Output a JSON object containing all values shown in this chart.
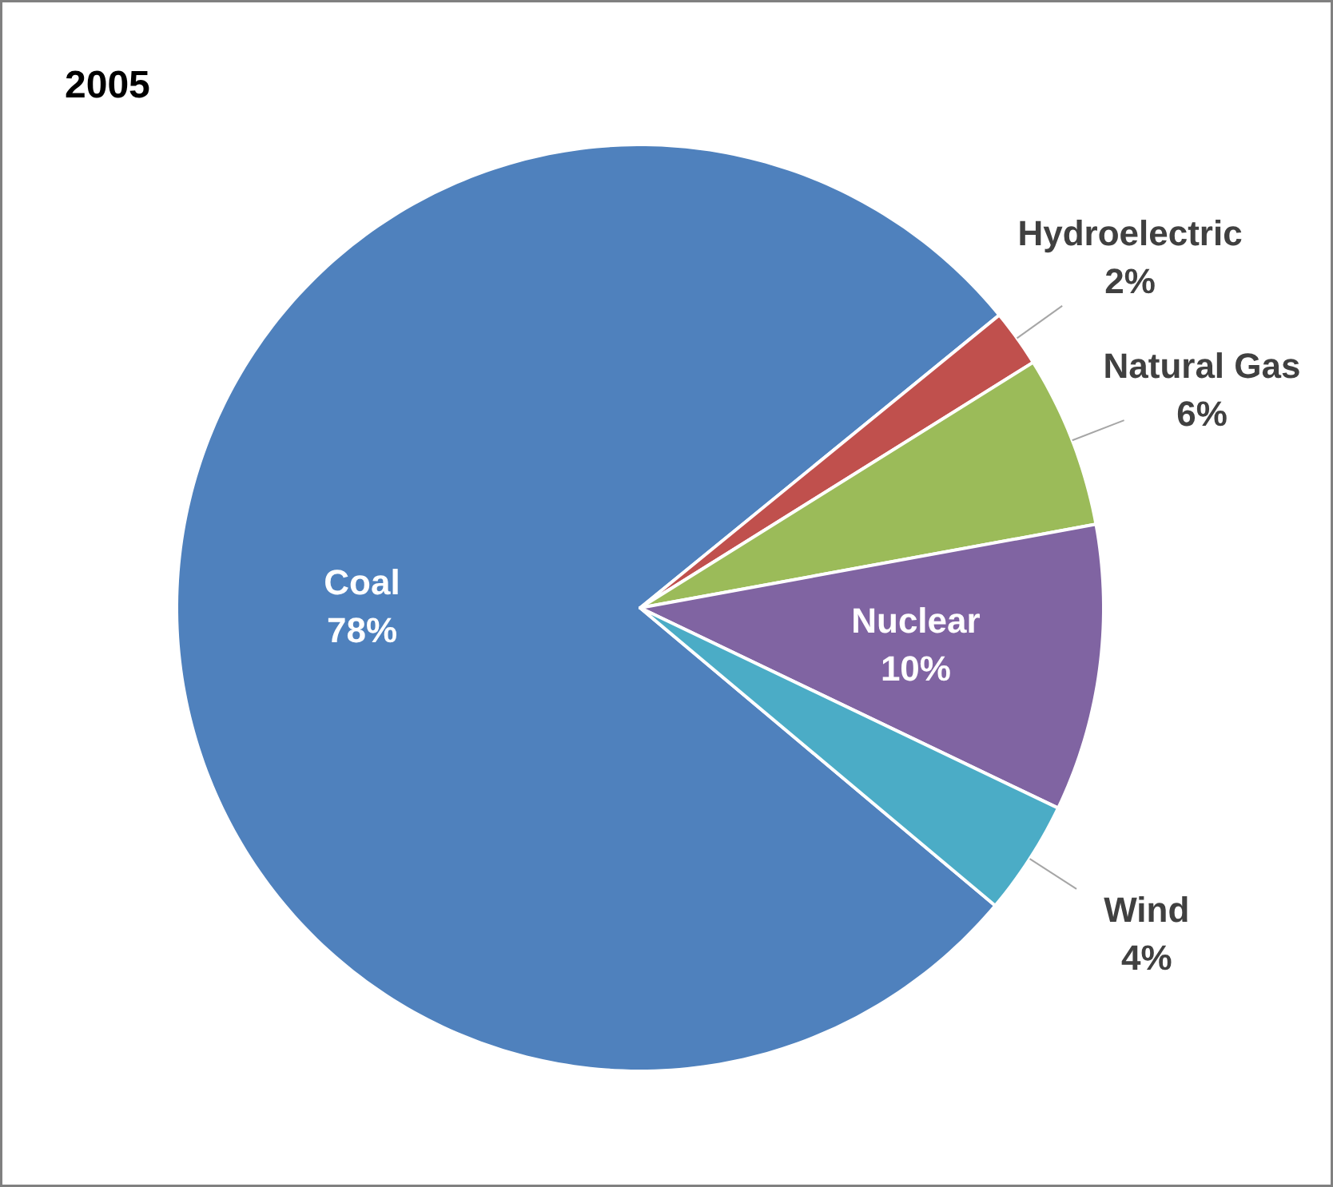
{
  "chart_data": {
    "type": "pie",
    "title": "2005",
    "categories": [
      "Coal",
      "Hydroelectric",
      "Natural Gas",
      "Nuclear",
      "Wind"
    ],
    "values": [
      78,
      2,
      6,
      10,
      4
    ],
    "value_labels": [
      "78%",
      "2%",
      "6%",
      "10%",
      "4%"
    ],
    "colors": [
      "#4f81bd",
      "#c0504d",
      "#9bbb59",
      "#8064a2",
      "#4bacc6"
    ]
  }
}
